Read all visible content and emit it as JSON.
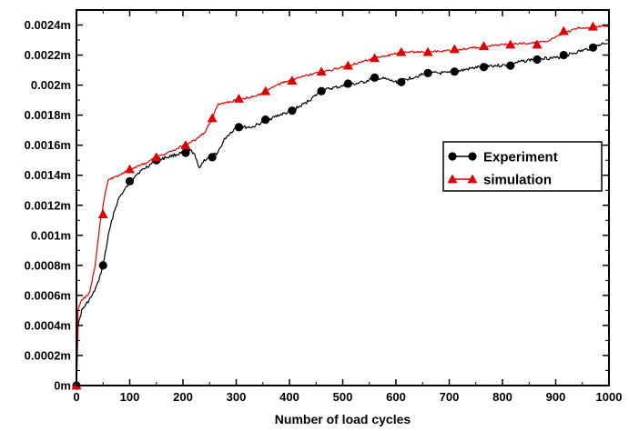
{
  "chart_data": {
    "type": "line",
    "title": "",
    "xlabel": "Number of load cycles",
    "ylabel": "",
    "xlim": [
      0,
      1000
    ],
    "ylim": [
      0,
      0.0025
    ],
    "grid": false,
    "legend_position": "right-middle",
    "x_ticks": [
      0,
      100,
      200,
      300,
      400,
      500,
      600,
      700,
      800,
      900,
      1000
    ],
    "x_tick_labels": [
      "0",
      "100",
      "200",
      "300",
      "400",
      "500",
      "600",
      "700",
      "800",
      "900",
      "1000"
    ],
    "y_ticks": [
      0,
      0.0002,
      0.0004,
      0.0006,
      0.0008,
      0.001,
      0.0012,
      0.0014,
      0.0016,
      0.0018,
      0.002,
      0.0022,
      0.0024
    ],
    "y_tick_labels": [
      "0m",
      "0.0002m",
      "0.0004m",
      "0.0006m",
      "0.0008m",
      "0.001m",
      "0.0012m",
      "0.0014m",
      "0.0016m",
      "0.0018m",
      "0.002m",
      "0.0022m",
      "0.0024m"
    ],
    "series": [
      {
        "name": "Experiment",
        "color": "#000000",
        "marker": "circle",
        "line": [
          [
            0,
            0
          ],
          [
            3,
            0.0004
          ],
          [
            10,
            0.0005
          ],
          [
            20,
            0.00055
          ],
          [
            30,
            0.0006
          ],
          [
            40,
            0.00068
          ],
          [
            50,
            0.0008
          ],
          [
            60,
            0.001
          ],
          [
            70,
            0.00115
          ],
          [
            80,
            0.00125
          ],
          [
            90,
            0.0013
          ],
          [
            100,
            0.00135
          ],
          [
            110,
            0.0014
          ],
          [
            130,
            0.00145
          ],
          [
            150,
            0.0015
          ],
          [
            170,
            0.00152
          ],
          [
            190,
            0.00154
          ],
          [
            200,
            0.00155
          ],
          [
            210,
            0.00157
          ],
          [
            220,
            0.00155
          ],
          [
            230,
            0.00145
          ],
          [
            240,
            0.0015
          ],
          [
            250,
            0.00152
          ],
          [
            265,
            0.00155
          ],
          [
            280,
            0.00165
          ],
          [
            300,
            0.00172
          ],
          [
            330,
            0.00172
          ],
          [
            360,
            0.00177
          ],
          [
            380,
            0.0018
          ],
          [
            400,
            0.00182
          ],
          [
            430,
            0.00188
          ],
          [
            460,
            0.00196
          ],
          [
            480,
            0.00198
          ],
          [
            510,
            0.002
          ],
          [
            540,
            0.00202
          ],
          [
            560,
            0.00205
          ],
          [
            580,
            0.00204
          ],
          [
            600,
            0.00202
          ],
          [
            630,
            0.00205
          ],
          [
            660,
            0.00208
          ],
          [
            700,
            0.00208
          ],
          [
            740,
            0.00211
          ],
          [
            770,
            0.00213
          ],
          [
            800,
            0.00213
          ],
          [
            840,
            0.00216
          ],
          [
            870,
            0.00218
          ],
          [
            900,
            0.00218
          ],
          [
            920,
            0.0022
          ],
          [
            950,
            0.00223
          ],
          [
            970,
            0.00225
          ],
          [
            990,
            0.00228
          ],
          [
            1000,
            0.00228
          ]
        ],
        "markers_x": [
          0,
          50,
          100,
          150,
          205,
          255,
          305,
          355,
          405,
          460,
          510,
          560,
          610,
          660,
          710,
          765,
          815,
          865,
          915,
          970
        ],
        "markers_y": [
          0,
          0.0008,
          0.00136,
          0.0015,
          0.00155,
          0.00152,
          0.00172,
          0.00177,
          0.00183,
          0.00196,
          0.00201,
          0.00205,
          0.00202,
          0.00208,
          0.00209,
          0.00212,
          0.00213,
          0.00217,
          0.0022,
          0.00225
        ]
      },
      {
        "name": "simulation",
        "color": "#e00000",
        "marker": "triangle",
        "line": [
          [
            0,
            0
          ],
          [
            3,
            0.0005
          ],
          [
            10,
            0.00057
          ],
          [
            20,
            0.0006
          ],
          [
            25,
            0.00062
          ],
          [
            35,
            0.0008
          ],
          [
            45,
            0.0011
          ],
          [
            55,
            0.0013
          ],
          [
            60,
            0.00137
          ],
          [
            80,
            0.0014
          ],
          [
            100,
            0.00144
          ],
          [
            130,
            0.00148
          ],
          [
            150,
            0.00152
          ],
          [
            180,
            0.00156
          ],
          [
            200,
            0.0016
          ],
          [
            220,
            0.00163
          ],
          [
            240,
            0.00168
          ],
          [
            255,
            0.00178
          ],
          [
            265,
            0.00187
          ],
          [
            280,
            0.00188
          ],
          [
            300,
            0.0019
          ],
          [
            340,
            0.00193
          ],
          [
            360,
            0.00197
          ],
          [
            390,
            0.00202
          ],
          [
            410,
            0.00204
          ],
          [
            450,
            0.00208
          ],
          [
            480,
            0.0021
          ],
          [
            510,
            0.00213
          ],
          [
            530,
            0.00215
          ],
          [
            560,
            0.00218
          ],
          [
            590,
            0.0022
          ],
          [
            610,
            0.00222
          ],
          [
            650,
            0.00222
          ],
          [
            700,
            0.00223
          ],
          [
            750,
            0.00225
          ],
          [
            800,
            0.00227
          ],
          [
            850,
            0.00228
          ],
          [
            880,
            0.00229
          ],
          [
            900,
            0.00232
          ],
          [
            920,
            0.00235
          ],
          [
            940,
            0.00238
          ],
          [
            960,
            0.00238
          ],
          [
            980,
            0.00239
          ],
          [
            1000,
            0.00239
          ]
        ],
        "markers_x": [
          0,
          50,
          100,
          150,
          205,
          255,
          305,
          355,
          405,
          460,
          510,
          560,
          610,
          660,
          710,
          765,
          815,
          865,
          915,
          970
        ],
        "markers_y": [
          0,
          0.00114,
          0.00144,
          0.00152,
          0.0016,
          0.00178,
          0.00191,
          0.00196,
          0.00203,
          0.00209,
          0.00213,
          0.00218,
          0.00222,
          0.00222,
          0.00224,
          0.00226,
          0.00227,
          0.00227,
          0.00236,
          0.00239
        ]
      }
    ]
  }
}
